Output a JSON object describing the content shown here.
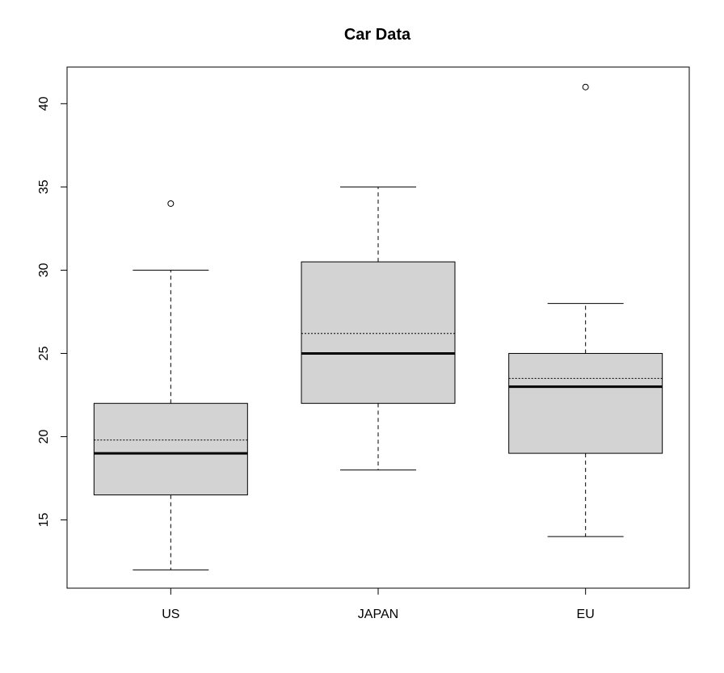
{
  "chart_data": {
    "type": "boxplot",
    "title": "Car Data",
    "xlabel": "",
    "ylabel": "",
    "categories": [
      "US",
      "JAPAN",
      "EU"
    ],
    "ylim": [
      10.9,
      42.2
    ],
    "yticks": [
      15,
      20,
      25,
      30,
      35,
      40
    ],
    "boxes": [
      {
        "name": "US",
        "whisker_low": 12,
        "q1": 16.5,
        "median": 19,
        "mean": 19.8,
        "q3": 22,
        "whisker_high": 30,
        "outliers": [
          34
        ]
      },
      {
        "name": "JAPAN",
        "whisker_low": 18,
        "q1": 22,
        "median": 25,
        "mean": 26.2,
        "q3": 30.5,
        "whisker_high": 35,
        "outliers": []
      },
      {
        "name": "EU",
        "whisker_low": 14,
        "q1": 19,
        "median": 23,
        "mean": 23.5,
        "q3": 25,
        "whisker_high": 28,
        "outliers": [
          41
        ]
      }
    ],
    "grid": false,
    "colors": {
      "box_fill": "#d3d3d3",
      "stroke": "#000000",
      "background": "#ffffff"
    }
  }
}
